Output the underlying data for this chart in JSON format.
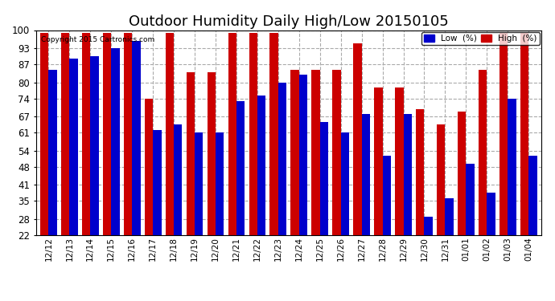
{
  "title": "Outdoor Humidity Daily High/Low 20150105",
  "copyright": "Copyright 2015 Cartronics.com",
  "dates": [
    "12/12",
    "12/13",
    "12/14",
    "12/15",
    "12/16",
    "12/17",
    "12/18",
    "12/19",
    "12/20",
    "12/21",
    "12/22",
    "12/23",
    "12/24",
    "12/25",
    "12/26",
    "12/27",
    "12/28",
    "12/29",
    "12/30",
    "12/31",
    "01/01",
    "01/02",
    "01/03",
    "01/04"
  ],
  "high": [
    99,
    99,
    99,
    99,
    99,
    74,
    99,
    84,
    84,
    99,
    99,
    99,
    85,
    85,
    85,
    95,
    78,
    78,
    70,
    64,
    69,
    85,
    99,
    99
  ],
  "low": [
    85,
    89,
    90,
    93,
    96,
    62,
    64,
    61,
    61,
    73,
    75,
    80,
    83,
    65,
    61,
    68,
    52,
    68,
    29,
    36,
    49,
    38,
    74,
    52
  ],
  "ylim_min": 22,
  "ylim_max": 100,
  "yticks": [
    22,
    28,
    35,
    41,
    48,
    54,
    61,
    67,
    74,
    80,
    87,
    93,
    100
  ],
  "bar_color_low": "#0000cc",
  "bar_color_high": "#cc0000",
  "background_color": "#ffffff",
  "grid_color": "#aaaaaa",
  "title_fontsize": 13,
  "legend_low_label": "Low  (%)",
  "legend_high_label": "High  (%)"
}
